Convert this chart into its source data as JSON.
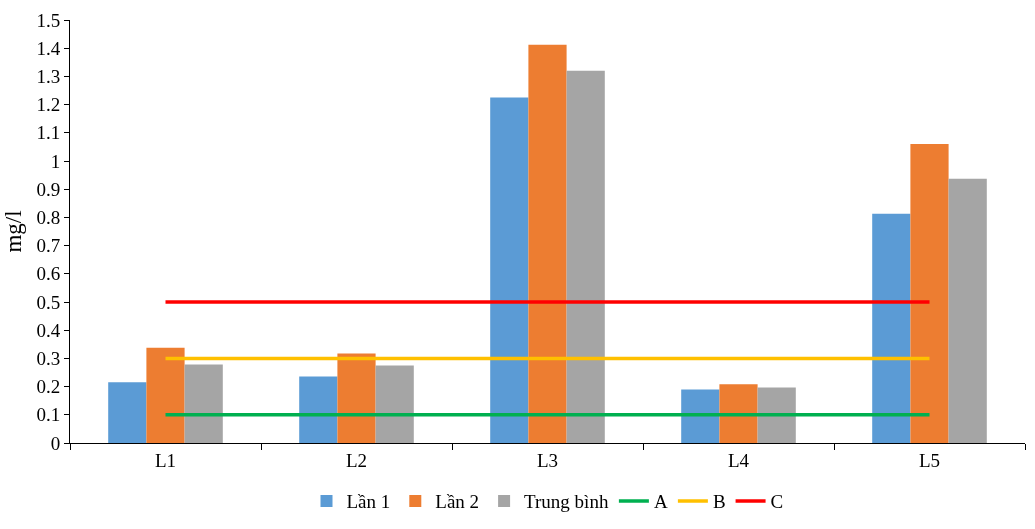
{
  "chart_data": {
    "type": "bar",
    "ylabel": "mg/l",
    "categories": [
      "L1",
      "L2",
      "L3",
      "L4",
      "L5"
    ],
    "series": [
      {
        "name": "Lần 1",
        "color": "#5b9bd5",
        "values": [
          0.215,
          0.236,
          1.225,
          0.19,
          0.813
        ]
      },
      {
        "name": "Lần 2",
        "color": "#ed7d31",
        "values": [
          0.338,
          0.317,
          1.412,
          0.208,
          1.06
        ]
      },
      {
        "name": "Trung bình",
        "color": "#a5a5a5",
        "values": [
          0.278,
          0.275,
          1.32,
          0.197,
          0.937
        ]
      },
      {
        "name": "A",
        "type": "line",
        "color": "#00b050",
        "values": [
          0.1,
          0.1,
          0.1,
          0.1,
          0.1
        ]
      },
      {
        "name": "B",
        "type": "line",
        "color": "#ffc000",
        "values": [
          0.3,
          0.3,
          0.3,
          0.3,
          0.3
        ]
      },
      {
        "name": "C",
        "type": "line",
        "color": "#ff0000",
        "values": [
          0.5,
          0.5,
          0.5,
          0.5,
          0.5
        ]
      }
    ],
    "ylim": [
      0,
      1.5
    ],
    "yticks": [
      0,
      0.1,
      0.2,
      0.3,
      0.4,
      0.5,
      0.6,
      0.7,
      0.8,
      0.9,
      1,
      1.1,
      1.2,
      1.3,
      1.4,
      1.5
    ],
    "grid": false,
    "legend": "bottom",
    "marker": "none",
    "line_style": "solid"
  }
}
